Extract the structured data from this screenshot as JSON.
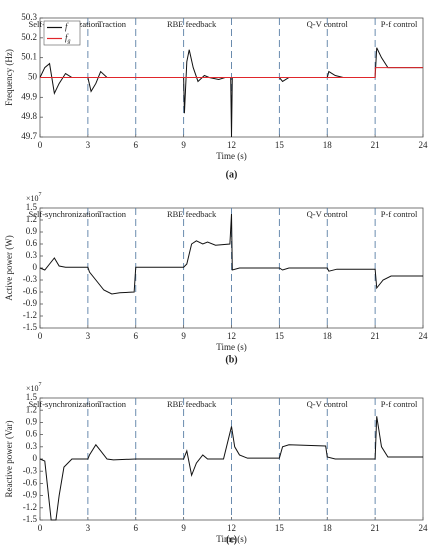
{
  "chart_data": [
    {
      "type": "line",
      "x_label": "Time (s)",
      "y_label": "Frequency (Hz)",
      "caption": "(a)",
      "xlim": [
        0,
        24
      ],
      "xticks": [
        0,
        3,
        6,
        9,
        12,
        15,
        18,
        21,
        24
      ],
      "ylim": [
        49.7,
        50.3
      ],
      "yticks": [
        49.7,
        49.8,
        49.9,
        50,
        50.1,
        50.2,
        50.3
      ],
      "legend": "upper left",
      "vlines": [
        3,
        6,
        9,
        12,
        15,
        18,
        21
      ],
      "annotations": [
        {
          "text": "Self-synchronization",
          "x": 1.5
        },
        {
          "text": "Traction",
          "x": 4.5
        },
        {
          "text": "RBE feedback",
          "x": 9.5
        },
        {
          "text": "Q-V control",
          "x": 18
        },
        {
          "text": "P-f control",
          "x": 22.5
        }
      ],
      "series": [
        {
          "name": "f",
          "color": "#111111",
          "x": [
            0,
            0.3,
            0.6,
            0.9,
            1.2,
            1.6,
            2,
            3,
            3.2,
            3.5,
            3.8,
            4.2,
            6,
            9,
            9.05,
            9.2,
            9.35,
            9.6,
            9.9,
            10.3,
            10.6,
            11.2,
            11.6,
            11.95,
            12,
            12.05,
            15,
            15.2,
            15.6,
            18,
            18.1,
            18.5,
            19,
            21,
            21.1,
            21.4,
            21.8,
            22.5,
            24
          ],
          "values": [
            50,
            50.05,
            50.07,
            49.92,
            49.97,
            50.02,
            50,
            50,
            49.93,
            49.97,
            50.03,
            50,
            50,
            50,
            49.82,
            50.08,
            50.14,
            50.05,
            49.98,
            50.01,
            50,
            49.99,
            50,
            50,
            49.7,
            50,
            50,
            49.98,
            50,
            50,
            50.03,
            50.01,
            50,
            50,
            50.15,
            50.1,
            50.05,
            50.05,
            50.05
          ]
        },
        {
          "name": "f",
          "name_subscript": "g",
          "color": "#e0262b",
          "x": [
            0,
            21,
            21.01,
            24
          ],
          "values": [
            50,
            50,
            50.05,
            50.05
          ]
        }
      ]
    },
    {
      "type": "line",
      "x_label": "Time (s)",
      "y_label": "Active power (W)",
      "caption": "(b)",
      "multiplier": "×10",
      "multiplier_exponent": "7",
      "xlim": [
        0,
        24
      ],
      "xticks": [
        0,
        3,
        6,
        9,
        12,
        15,
        18,
        21,
        24
      ],
      "ylim": [
        -1.5,
        1.5
      ],
      "yticks": [
        1.5,
        1.2,
        0.9,
        0.6,
        0.3,
        0,
        -0.3,
        -0.6,
        -0.9,
        -1.2,
        -1.5
      ],
      "vlines": [
        3,
        6,
        9,
        12,
        15,
        18,
        21
      ],
      "annotations": [
        {
          "text": "Self-synchronization",
          "x": 1.5
        },
        {
          "text": "Traction",
          "x": 4.5
        },
        {
          "text": "RBE feedback",
          "x": 9.5
        },
        {
          "text": "Q-V control",
          "x": 18
        },
        {
          "text": "P-f control",
          "x": 22.5
        }
      ],
      "series": [
        {
          "color": "#111111",
          "x": [
            0,
            0.3,
            0.6,
            0.9,
            1.2,
            1.6,
            3,
            3.1,
            3.5,
            4,
            4.5,
            5,
            5.9,
            6,
            9,
            9.2,
            9.5,
            9.8,
            10.2,
            10.5,
            11,
            11.9,
            12,
            12.05,
            12.5,
            15,
            15.2,
            15.6,
            18,
            18.1,
            18.6,
            21,
            21.1,
            21.5,
            22,
            24
          ],
          "values": [
            0,
            -0.05,
            0.1,
            0.25,
            0.05,
            0.02,
            0.02,
            -0.1,
            -0.3,
            -0.55,
            -0.65,
            -0.62,
            -0.6,
            0.02,
            0.02,
            0.1,
            0.6,
            0.68,
            0.6,
            0.65,
            0.57,
            0.6,
            1.35,
            -0.05,
            0,
            0,
            -0.05,
            0,
            0,
            -0.08,
            -0.03,
            -0.03,
            -0.5,
            -0.3,
            -0.2,
            -0.2
          ]
        }
      ]
    },
    {
      "type": "line",
      "x_label": "Time (s)",
      "y_label": "Reactive power (Var)",
      "caption": "(c)",
      "multiplier": "×10",
      "multiplier_exponent": "7",
      "xlim": [
        0,
        24
      ],
      "xticks": [
        0,
        3,
        6,
        9,
        12,
        15,
        18,
        21,
        24
      ],
      "ylim": [
        -1.5,
        1.5
      ],
      "yticks": [
        1.5,
        1.2,
        0.9,
        0.6,
        0.3,
        0,
        -0.3,
        -0.6,
        -0.9,
        -1.2,
        -1.5
      ],
      "vlines": [
        3,
        6,
        9,
        12,
        15,
        18,
        21
      ],
      "annotations": [
        {
          "text": "Self-synchronization",
          "x": 1.5
        },
        {
          "text": "Traction",
          "x": 4.5
        },
        {
          "text": "RBE feedback",
          "x": 9.5
        },
        {
          "text": "Q-V control",
          "x": 18
        },
        {
          "text": "P-f control",
          "x": 22.5
        }
      ],
      "series": [
        {
          "color": "#111111",
          "x": [
            0,
            0.3,
            0.7,
            1,
            1.2,
            1.5,
            2,
            3,
            3.1,
            3.5,
            3.8,
            4.2,
            4.6,
            6,
            9,
            9.2,
            9.5,
            9.8,
            10.2,
            10.5,
            11.5,
            12,
            12.2,
            12.5,
            13,
            15,
            15.2,
            15.6,
            17.9,
            18,
            18.5,
            21,
            21.1,
            21.4,
            21.8,
            24
          ],
          "values": [
            0,
            -0.05,
            -1.5,
            -1.5,
            -0.9,
            -0.2,
            0,
            0,
            0.1,
            0.35,
            0.2,
            0,
            -0.02,
            0,
            0,
            0.2,
            -0.4,
            -0.1,
            0.1,
            0,
            0,
            0.8,
            0.3,
            0.1,
            0.02,
            0.02,
            0.3,
            0.35,
            0.32,
            0.05,
            0,
            0,
            1.05,
            0.3,
            0.05,
            0.05
          ]
        }
      ]
    }
  ]
}
